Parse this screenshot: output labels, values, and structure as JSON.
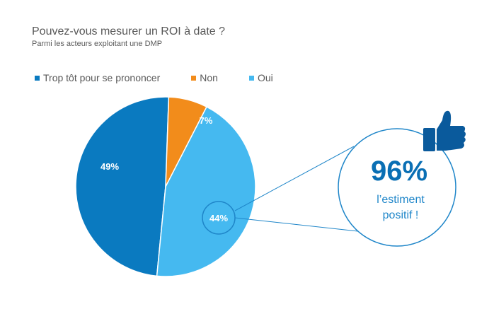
{
  "chart_data": {
    "type": "pie",
    "title": "Pouvez-vous mesurer un ROI à date ?",
    "subtitle": "Parmi les acteurs exploitant une DMP",
    "legend_position": "top-left",
    "slices": [
      {
        "name": "Trop tôt pour se prononcer",
        "value": 49,
        "label": "49%",
        "color": "#0a7ac0"
      },
      {
        "name": "Non",
        "value": 7,
        "label": "7%",
        "color": "#f28c1b"
      },
      {
        "name": "Oui",
        "value": 44,
        "label": "44%",
        "color": "#45b9f0"
      }
    ],
    "callout": {
      "value": "96%",
      "line1": "l’estiment",
      "line2": "positif !",
      "icon": "thumbs-up-icon"
    }
  }
}
